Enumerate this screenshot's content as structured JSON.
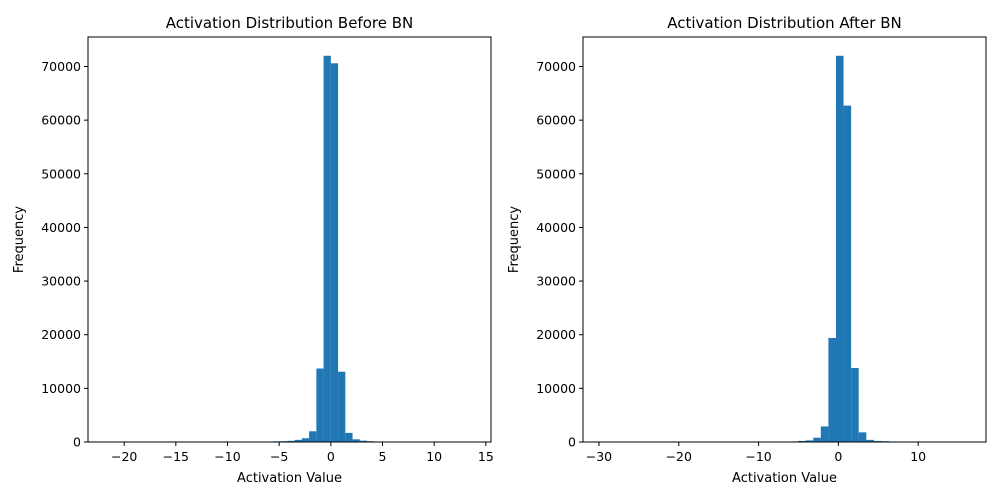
{
  "chart_data": [
    {
      "type": "bar",
      "title": "Activation Distribution Before BN",
      "xlabel": "Activation Value",
      "ylabel": "Frequency",
      "xlim": [
        -23.5,
        15.5
      ],
      "ylim": [
        0,
        75500
      ],
      "xticks": [
        -20,
        -15,
        -10,
        -5,
        0,
        5,
        10,
        15
      ],
      "xtick_labels": [
        "−20",
        "−15",
        "−10",
        "−5",
        "0",
        "5",
        "10",
        "15"
      ],
      "yticks": [
        0,
        10000,
        20000,
        30000,
        40000,
        50000,
        60000,
        70000
      ],
      "ytick_labels": [
        "0",
        "10000",
        "20000",
        "30000",
        "40000",
        "50000",
        "60000",
        "70000"
      ],
      "bin_width": 0.7,
      "series": [
        {
          "x": [
            -5.6,
            -4.9,
            -4.2,
            -3.5,
            -2.8,
            -2.1,
            -1.4,
            -0.7,
            0.0,
            0.7,
            1.4,
            2.1,
            2.8,
            3.5,
            4.2
          ],
          "values": [
            120,
            150,
            220,
            400,
            700,
            2000,
            13700,
            72000,
            70600,
            13100,
            1700,
            500,
            250,
            150,
            80
          ]
        }
      ]
    },
    {
      "type": "bar",
      "title": "Activation Distribution After BN",
      "xlabel": "Activation Value",
      "ylabel": "Frequency",
      "xlim": [
        -32,
        18.5
      ],
      "ylim": [
        0,
        75500
      ],
      "xticks": [
        -30,
        -20,
        -10,
        0,
        10
      ],
      "xtick_labels": [
        "−30",
        "−20",
        "−10",
        "0",
        "10"
      ],
      "yticks": [
        0,
        10000,
        20000,
        30000,
        40000,
        50000,
        60000,
        70000
      ],
      "ytick_labels": [
        "0",
        "10000",
        "20000",
        "30000",
        "40000",
        "50000",
        "60000",
        "70000"
      ],
      "bin_width": 0.95,
      "series": [
        {
          "x": [
            -6.0,
            -5.05,
            -4.1,
            -3.15,
            -2.2,
            -1.25,
            -0.3,
            0.65,
            1.6,
            2.55,
            3.5,
            4.45,
            5.4,
            6.35
          ],
          "values": [
            100,
            200,
            300,
            800,
            2900,
            19400,
            72000,
            62700,
            13800,
            1800,
            400,
            200,
            150,
            80
          ]
        }
      ]
    }
  ]
}
